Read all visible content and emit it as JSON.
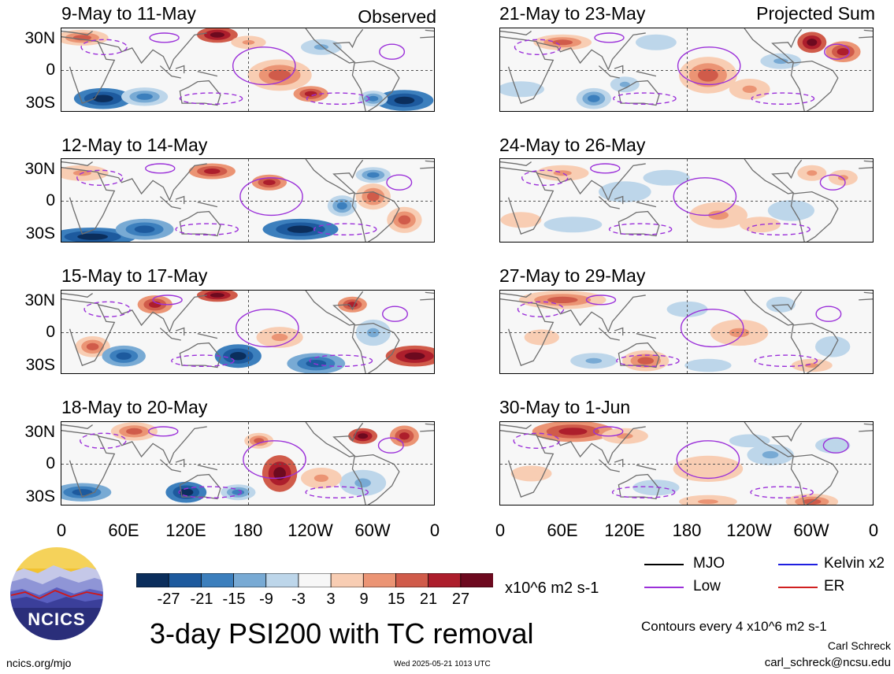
{
  "chart_data": {
    "type": "heatmap",
    "title": "3-day PSI200 with TC removal",
    "left_column_tag": "Observed",
    "right_column_tag": "Projected Sum",
    "y_ticks": [
      "30N",
      "0",
      "30S"
    ],
    "x_ticks": [
      "0",
      "60E",
      "120E",
      "180",
      "120W",
      "60W",
      "0"
    ],
    "xlim_deg_east": [
      0,
      360
    ],
    "ylim_deg": [
      -45,
      45
    ],
    "panels": [
      {
        "column": "left",
        "row": 0,
        "title": "9-May to 11-May"
      },
      {
        "column": "left",
        "row": 1,
        "title": "12-May to 14-May"
      },
      {
        "column": "left",
        "row": 2,
        "title": "15-May to 17-May"
      },
      {
        "column": "left",
        "row": 3,
        "title": "18-May to 20-May"
      },
      {
        "column": "right",
        "row": 0,
        "title": "21-May to 23-May"
      },
      {
        "column": "right",
        "row": 1,
        "title": "24-May to 26-May"
      },
      {
        "column": "right",
        "row": 2,
        "title": "27-May to 29-May"
      },
      {
        "column": "right",
        "row": 3,
        "title": "30-May to 1-Jun"
      }
    ],
    "colorbar": {
      "labels": [
        "-27",
        "-21",
        "-15",
        "-9",
        "-3",
        "3",
        "9",
        "15",
        "21",
        "27"
      ],
      "colors": [
        "#0b2e5c",
        "#1d5a9e",
        "#3c7fbd",
        "#78aad4",
        "#bdd6ea",
        "#f7f7f7",
        "#f8cdb3",
        "#eb9474",
        "#d05b4a",
        "#ad1e2c",
        "#6d0a1f"
      ],
      "units": "x10^6 m2 s-1"
    },
    "legend": [
      {
        "label": "MJO",
        "color": "#000000"
      },
      {
        "label": "Kelvin x2",
        "color": "#1f1fe0"
      },
      {
        "label": "Low",
        "color": "#9b30d9"
      },
      {
        "label": "ER",
        "color": "#d02020"
      }
    ],
    "contour_note": "Contours every 4 x10^6 m2 s-1"
  },
  "footer": {
    "logo_text": "NCICS",
    "site": "ncics.org/mjo",
    "timestamp": "Wed 2025-05-21 1013 UTC",
    "author": "Carl Schreck",
    "email": "carl_schreck@ncsu.edu"
  }
}
